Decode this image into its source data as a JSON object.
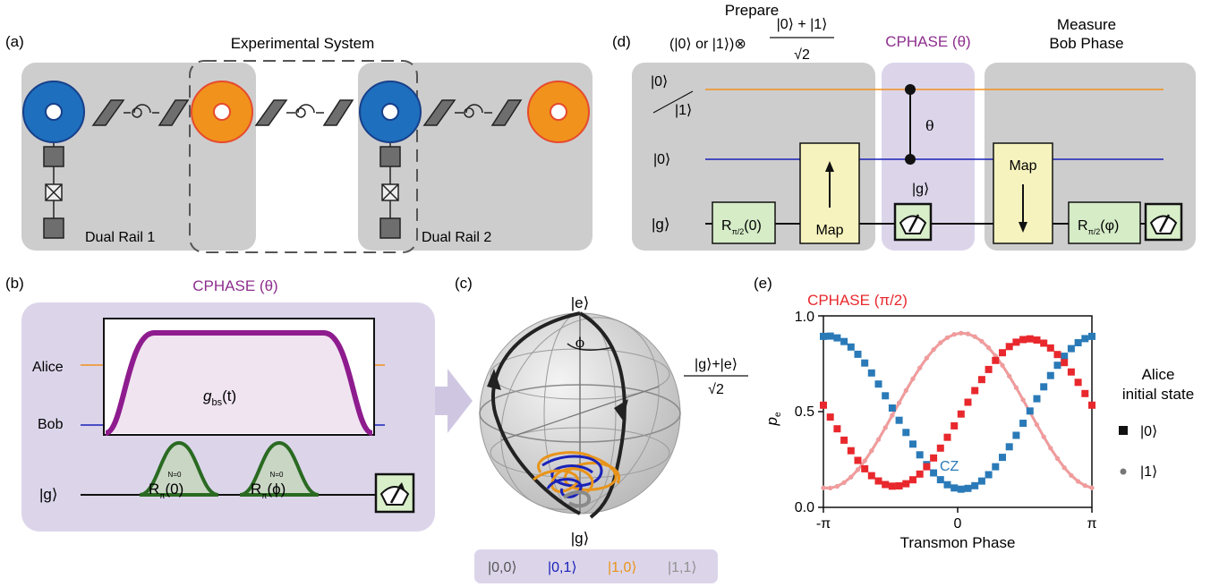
{
  "panel_a": {
    "label": "(a)",
    "system_title": "Experimental System",
    "rail1": "Dual Rail 1",
    "rail2": "Dual Rail 2"
  },
  "panel_b": {
    "label": "(b)",
    "title": "CPHASE (θ)",
    "alice": "Alice",
    "bob": "Bob",
    "g_state": "|g⟩",
    "coupling": "g",
    "coupling_sub": "bs",
    "coupling_arg": "(t)",
    "pulse1_main": "R",
    "pulse1_sup": "N=0",
    "pulse1_sub": "π",
    "pulse1_arg": "(0)",
    "pulse2_main": "R",
    "pulse2_sup": "N=0",
    "pulse2_sub": "π",
    "pulse2_arg": "(ϕ)"
  },
  "panel_c": {
    "label": "(c)",
    "top_state": "|e⟩",
    "bottom_state": "|g⟩",
    "angle": "ϕ",
    "side_num": "|g⟩+|e⟩",
    "side_den": "√2",
    "legend": [
      {
        "text": "|0,0⟩",
        "color": "#555555"
      },
      {
        "text": "|0,1⟩",
        "color": "#1a22b8"
      },
      {
        "text": "|1,0⟩",
        "color": "#e8941a"
      },
      {
        "text": "|1,1⟩",
        "color": "#909090"
      }
    ]
  },
  "panel_d": {
    "label": "(d)",
    "prepare_title": "Prepare",
    "prepare_left": "(|0⟩ or |1⟩)⊗",
    "prepare_num": "|0⟩ + |1⟩",
    "prepare_den": "√2",
    "cphase_title": "CPHASE (θ)",
    "measure_title": "Measure",
    "measure_sub": "Bob Phase",
    "row1_top": "|0⟩",
    "row1_bot": "|1⟩",
    "row2": "|0⟩",
    "row3": "|g⟩",
    "theta": "θ",
    "g_mid": "|g⟩",
    "rot1_main": "R",
    "rot1_sub": "π/2",
    "rot1_arg": "(0)",
    "map1": "Map",
    "map2": "Map",
    "rot2_main": "R",
    "rot2_sub": "π/2",
    "rot2_arg": "(φ)"
  },
  "panel_e": {
    "label": "(e)",
    "legend_title1": "Alice",
    "legend_title2": "initial state",
    "legend_items": [
      "|0⟩",
      "|1⟩"
    ],
    "cz_label": "CZ"
  },
  "chart_data": {
    "type": "scatter",
    "title": "CPHASE (π/2)",
    "xlabel": "Transmon Phase",
    "ylabel": "p",
    "ylabel_sub": "e",
    "xlim": [
      -3.14159,
      3.14159
    ],
    "ylim": [
      0.0,
      1.0
    ],
    "xticks": [
      "-π",
      "0",
      "π"
    ],
    "yticks": [
      "0.0",
      "0.5",
      "1.0"
    ],
    "n_points": 40,
    "series": [
      {
        "name": "CPHASE (π/2) |0⟩",
        "color": "#e8282d",
        "marker": "square",
        "offset": 0.1,
        "phase": 1.571,
        "amp": 0.385,
        "mean": 0.495,
        "line": false
      },
      {
        "name": "CPHASE (π/2) |1⟩",
        "color": "#f29b9b",
        "marker": "circle",
        "offset": 0.1,
        "phase": 0.0,
        "amp": 0.405,
        "mean": 0.505,
        "line": true
      },
      {
        "name": "CZ |0⟩",
        "color": "#2a7ab8",
        "marker": "square",
        "offset": 0.1,
        "phase": 3.1416,
        "amp": 0.4,
        "mean": 0.495,
        "line": false
      },
      {
        "name": "CZ |1⟩",
        "color": "#9fcbe6",
        "marker": "circle",
        "offset": 0.1,
        "phase": 0.0,
        "amp": 0.405,
        "mean": 0.505,
        "line": true
      }
    ]
  },
  "colors": {
    "gray_box": "#cdcdcd",
    "purple_box": "#dcd5ea",
    "orange": "#f0921c",
    "blue_disc": "#1e6fbd",
    "purple_text": "#8e2f8e",
    "red_text": "#e8282d",
    "map_yellow": "#f7f3be",
    "rot_green": "#d5ecc7"
  }
}
